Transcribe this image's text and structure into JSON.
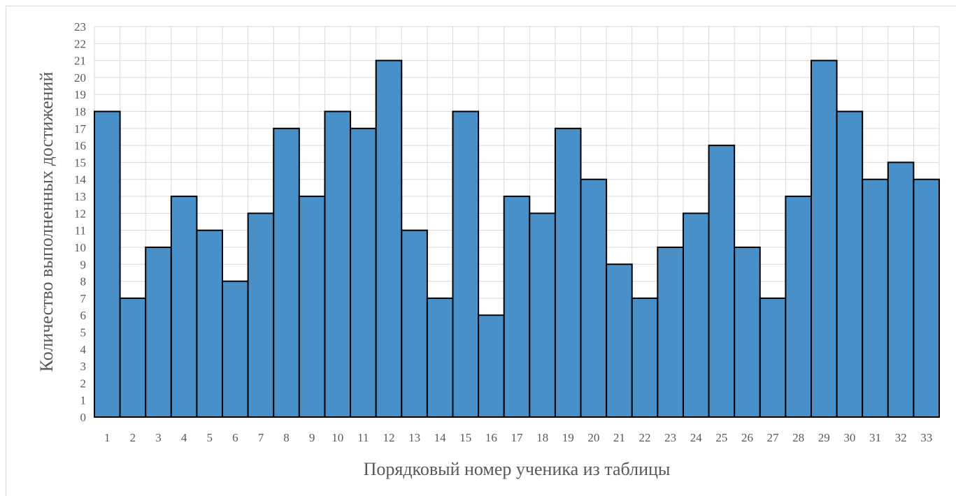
{
  "chart_data": {
    "type": "bar",
    "title": "",
    "xlabel": "Порядковый номер ученика из таблицы",
    "ylabel": "Количество выполненных достижений",
    "categories": [
      "1",
      "2",
      "3",
      "4",
      "5",
      "6",
      "7",
      "8",
      "9",
      "10",
      "11",
      "12",
      "13",
      "14",
      "15",
      "16",
      "17",
      "18",
      "19",
      "20",
      "21",
      "22",
      "23",
      "24",
      "25",
      "26",
      "27",
      "28",
      "29",
      "30",
      "31",
      "32",
      "33"
    ],
    "values": [
      18,
      7,
      10,
      13,
      11,
      8,
      12,
      17,
      13,
      18,
      17,
      21,
      11,
      7,
      18,
      6,
      13,
      12,
      17,
      14,
      9,
      7,
      10,
      12,
      16,
      10,
      7,
      13,
      21,
      18,
      14,
      15,
      14
    ],
    "ylim": [
      0,
      23
    ],
    "yticks": [
      "0",
      "1",
      "2",
      "3",
      "4",
      "5",
      "6",
      "7",
      "8",
      "9",
      "10",
      "11",
      "12",
      "13",
      "14",
      "15",
      "16",
      "17",
      "18",
      "19",
      "20",
      "21",
      "22",
      "23"
    ],
    "grid": true,
    "legend": "none",
    "colors": {
      "bar_fill": "#4a90c8",
      "bar_stroke": "#000000",
      "grid": "#d9d9d9",
      "text": "#595959"
    }
  }
}
